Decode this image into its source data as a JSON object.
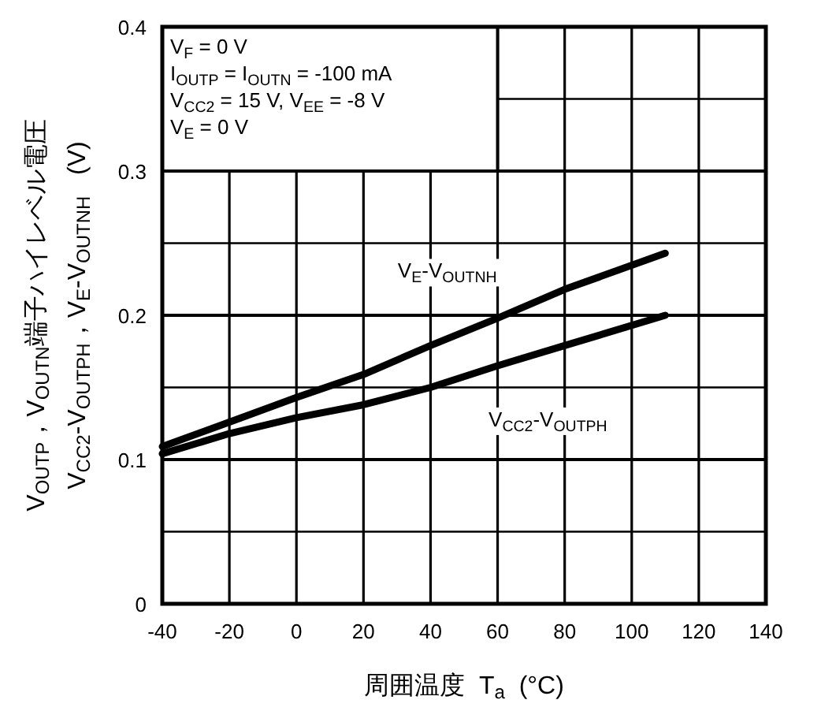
{
  "chart_data": {
    "type": "line",
    "xlabel": "周囲温度  T$_{a}$  (°C)",
    "ylabel": "V$_{OUTP}$，V$_{OUTN}$端子ハイレベル電圧\nV$_{CC2}$-V$_{OUTPH}$，V$_{E}$-V$_{OUTNH}$   (V)",
    "x": [
      -40,
      -20,
      0,
      20,
      40,
      60,
      80,
      110
    ],
    "series": [
      {
        "name": "V$_{E}$-V$_{OUTNH}$",
        "color": "#000000",
        "values": [
          0.109,
          0.126,
          0.143,
          0.159,
          0.179,
          0.198,
          0.218,
          0.243
        ]
      },
      {
        "name": "V$_{CC2}$-V$_{OUTPH}$",
        "color": "#000000",
        "values": [
          0.104,
          0.118,
          0.129,
          0.138,
          0.15,
          0.165,
          0.179,
          0.2
        ]
      }
    ],
    "xlim": [
      -40,
      140
    ],
    "xticks": [
      -40,
      -20,
      0,
      20,
      40,
      60,
      80,
      100,
      120,
      140
    ],
    "ylim": [
      0,
      0.4
    ],
    "yticks": [
      0,
      {
        "value": 0.05,
        "label": null
      },
      0.1,
      {
        "value": 0.15,
        "label": null
      },
      0.2,
      {
        "value": 0.25,
        "label": null
      },
      0.3,
      {
        "value": 0.35,
        "label": null
      },
      0.4
    ],
    "grid": true,
    "marker": "none",
    "line_style": "solid",
    "annotations": [
      "V$_{F}$ = 0 V",
      "I$_{OUTP}$ = I$_{OUTN}$ = -100 mA",
      "V$_{CC2}$ = 15 V, V$_{EE}$ = -8 V",
      "V$_{E}$ = 0 V"
    ]
  }
}
